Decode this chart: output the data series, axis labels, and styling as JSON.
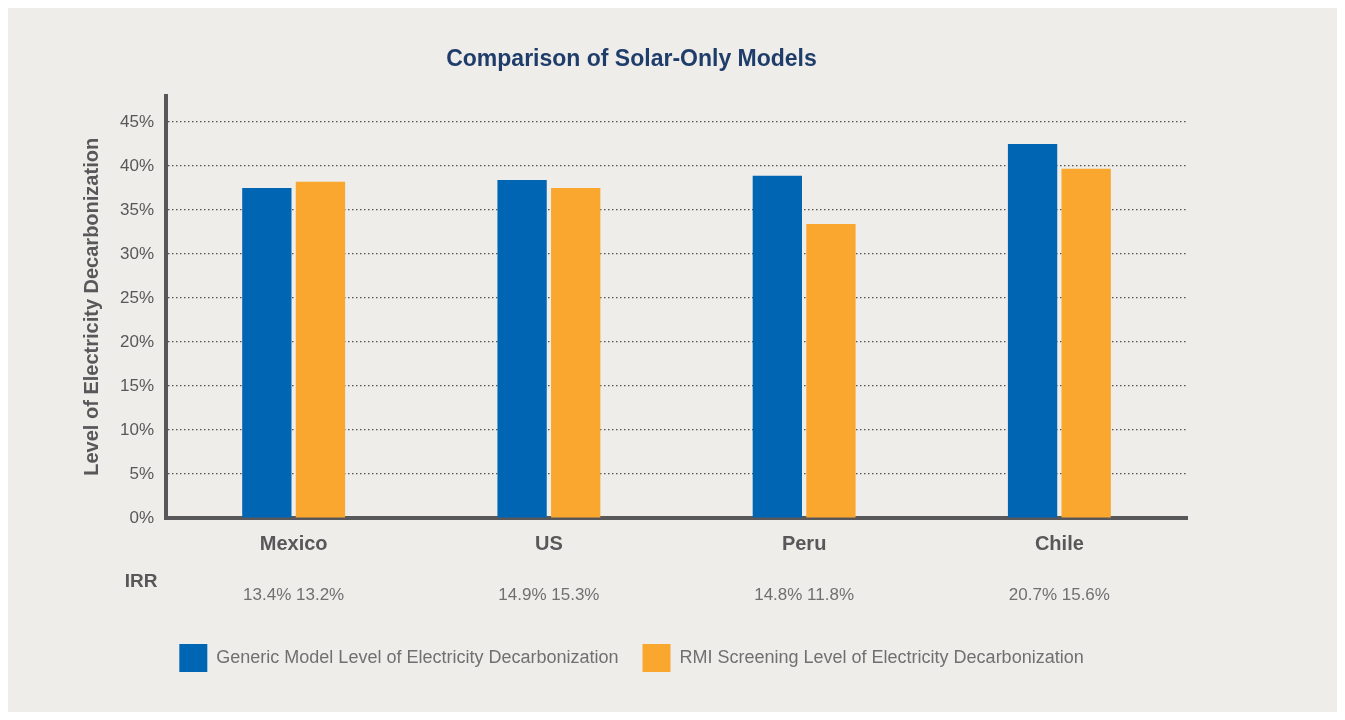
{
  "chart_data": {
    "type": "bar",
    "title": "Comparison of Solar-Only Models",
    "ylabel": "Level of Electricity Decarbonization",
    "categories": [
      "Mexico",
      "US",
      "Peru",
      "Chile"
    ],
    "series": [
      {
        "name": "Generic Model Level of Electricity Decarbonization",
        "color": "#0066b3",
        "values": [
          37.5,
          38.4,
          38.9,
          42.5
        ]
      },
      {
        "name": "RMI Screening Level of Electricity Decarbonization",
        "color": "#f9a72f",
        "values": [
          38.2,
          37.5,
          33.4,
          39.7
        ]
      }
    ],
    "ylim": [
      0,
      48
    ],
    "yticks": [
      {
        "value": 0,
        "label": "0%"
      },
      {
        "value": 5,
        "label": "5%"
      },
      {
        "value": 10,
        "label": "10%"
      },
      {
        "value": 15,
        "label": "15%"
      },
      {
        "value": 20,
        "label": "20%"
      },
      {
        "value": 25,
        "label": "25%"
      },
      {
        "value": 30,
        "label": "30%"
      },
      {
        "value": 35,
        "label": "35%"
      },
      {
        "value": 40,
        "label": "40%"
      },
      {
        "value": 45,
        "label": "45%"
      }
    ],
    "grid": "y",
    "legend": "bottom",
    "annotations": [
      "IRR",
      "13.4% 13.2%",
      "14.9% 15.3%",
      "14.8% 11.8%",
      "20.7% 15.6%"
    ]
  }
}
